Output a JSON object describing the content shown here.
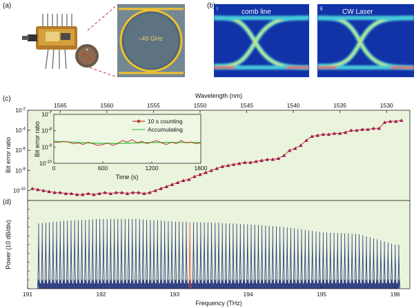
{
  "panels": {
    "a": "(a)",
    "b": "(b)",
    "c": "(c)",
    "d": "(d)"
  },
  "photo": {
    "ring_label": "~49 GHz"
  },
  "eye": {
    "left_index": "i",
    "left_label": "comb line",
    "right_index": "ii",
    "right_label": "CW Laser"
  },
  "colors": {
    "plot_bg": "#eaf4dc",
    "ber_marker": "#a0145a",
    "ber_line": "#c0392b",
    "accum_line": "#2ecc40",
    "comb_line": "#1f2e7a",
    "highlight": "#e8403a"
  },
  "chart_data": [
    {
      "type": "scatter",
      "title": "",
      "xlabel": "Wavelength (nm)",
      "ylabel": "Bit error ratio",
      "xaxis_position": "top",
      "xlim": [
        1568.5,
        1527.5
      ],
      "xticks": [
        1565,
        1560,
        1555,
        1550,
        1545,
        1540,
        1535,
        1530
      ],
      "ylim_exp": [
        -11,
        -2
      ],
      "yscale": "log",
      "yticks": [
        "10-10",
        "10-8",
        "10-6",
        "10-4",
        "10-2"
      ],
      "ytick_exps": [
        -10,
        -8,
        -6,
        -4,
        -2
      ],
      "series": [
        {
          "name": "",
          "x": [
            1568.0,
            1567.4,
            1566.8,
            1566.2,
            1565.6,
            1565.0,
            1564.4,
            1563.8,
            1563.2,
            1562.6,
            1562.0,
            1561.4,
            1560.8,
            1560.2,
            1559.6,
            1559.0,
            1558.4,
            1557.8,
            1557.2,
            1556.6,
            1556.0,
            1555.4,
            1554.8,
            1554.2,
            1553.6,
            1553.0,
            1552.4,
            1551.8,
            1551.2,
            1550.6,
            1550.0,
            1549.4,
            1548.8,
            1548.2,
            1547.6,
            1547.0,
            1546.4,
            1545.8,
            1545.2,
            1544.6,
            1544.0,
            1543.4,
            1542.8,
            1542.2,
            1541.6,
            1541.0,
            1540.4,
            1539.8,
            1539.2,
            1538.6,
            1538.0,
            1537.4,
            1536.8,
            1536.2,
            1535.6,
            1535.0,
            1534.4,
            1533.8,
            1533.2,
            1532.6,
            1532.0,
            1531.4,
            1530.8,
            1530.2,
            1529.6,
            1529.0,
            1528.4
          ],
          "exp": [
            -9.8,
            -9.9,
            -10.0,
            -10.1,
            -10.2,
            -10.2,
            -10.3,
            -10.3,
            -10.4,
            -10.4,
            -10.3,
            -10.4,
            -10.3,
            -10.2,
            -10.3,
            -10.2,
            -10.2,
            -10.3,
            -10.2,
            -10.2,
            -10.3,
            -10.2,
            -10.0,
            -9.8,
            -9.6,
            -9.4,
            -9.2,
            -9.0,
            -8.9,
            -8.6,
            -8.4,
            -8.2,
            -8.0,
            -7.8,
            -7.6,
            -7.5,
            -7.4,
            -7.3,
            -7.2,
            -7.2,
            -7.1,
            -7.0,
            -6.9,
            -6.9,
            -6.8,
            -6.5,
            -6.0,
            -5.8,
            -5.5,
            -5.0,
            -4.6,
            -4.5,
            -4.4,
            -4.4,
            -4.3,
            -4.3,
            -4.2,
            -4.0,
            -4.0,
            -3.9,
            -3.9,
            -3.8,
            -3.8,
            -3.2,
            -3.1,
            -3.1,
            -3.0
          ]
        }
      ]
    },
    {
      "type": "line",
      "title": "",
      "xlabel": "Time (s)",
      "ylabel": "Bit error ratio",
      "xlim": [
        0,
        1800
      ],
      "xticks": [
        0,
        600,
        1200,
        1800
      ],
      "ylim_exp": [
        -10,
        -7
      ],
      "yscale": "log",
      "yticks": [
        "10-10",
        "10-9",
        "10-8",
        "10-7"
      ],
      "ytick_exps": [
        -10,
        -9,
        -8,
        -7
      ],
      "legend": "top-right",
      "series": [
        {
          "name": "10 s counting",
          "x": [
            0,
            60,
            120,
            180,
            240,
            300,
            360,
            420,
            480,
            540,
            600,
            660,
            720,
            780,
            840,
            900,
            960,
            1020,
            1080,
            1140,
            1200,
            1260,
            1320,
            1380,
            1440,
            1500,
            1560,
            1620,
            1680,
            1740,
            1800
          ],
          "exp": [
            -8.7,
            -8.72,
            -8.65,
            -8.7,
            -8.8,
            -8.75,
            -8.85,
            -8.7,
            -8.8,
            -8.9,
            -8.85,
            -8.75,
            -8.9,
            -8.8,
            -8.6,
            -8.7,
            -8.55,
            -8.75,
            -8.65,
            -8.8,
            -8.7,
            -8.6,
            -8.75,
            -8.85,
            -8.7,
            -8.8,
            -8.6,
            -8.75,
            -8.7,
            -8.8,
            -8.75
          ]
        },
        {
          "name": "Accumulating",
          "x": [
            0,
            200,
            400,
            600,
            800,
            1000,
            1200,
            1400,
            1600,
            1800
          ],
          "exp": [
            -8.65,
            -8.7,
            -8.75,
            -8.78,
            -8.78,
            -8.75,
            -8.72,
            -8.72,
            -8.72,
            -8.72
          ]
        }
      ]
    },
    {
      "type": "line",
      "title": "",
      "xlabel": "Frequency (THz)",
      "ylabel": "Power (10 dB/div)",
      "xlim": [
        191,
        196.2
      ],
      "xticks": [
        191,
        192,
        193,
        194,
        195,
        196
      ],
      "comb_start": 191.15,
      "comb_spacing": 0.049,
      "comb_count": 101,
      "highlight_line_thz": 193.2,
      "envelope": {
        "thz": [
          191.15,
          191.5,
          192.0,
          192.5,
          193.0,
          193.5,
          194.0,
          194.5,
          195.0,
          195.5,
          196.0
        ],
        "divisions": [
          7.4,
          7.7,
          7.9,
          7.9,
          7.6,
          7.5,
          7.3,
          7.0,
          6.4,
          6.2,
          5.0
        ]
      },
      "floor_divisions": 0.4
    }
  ]
}
